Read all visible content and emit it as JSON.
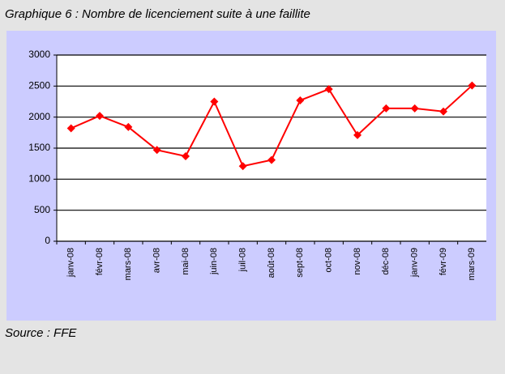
{
  "chart_data": {
    "type": "line",
    "title": "Graphique 6 : Nombre de licenciement suite à une faillite",
    "source": "Source : FFE",
    "categories": [
      "janv-08",
      "févr-08",
      "mars-08",
      "avr-08",
      "mai-08",
      "juin-08",
      "juil-08",
      "août-08",
      "sept-08",
      "oct-08",
      "nov-08",
      "déc-08",
      "janv-09",
      "févr-09",
      "mars-09"
    ],
    "values": [
      1820,
      2020,
      1840,
      1470,
      1370,
      2250,
      1210,
      1310,
      2270,
      2450,
      1710,
      2140,
      2140,
      2090,
      2510
    ],
    "color": "#ff0000",
    "ylim": [
      0,
      3000
    ],
    "yticks": [
      0,
      500,
      1000,
      1500,
      2000,
      2500,
      3000
    ],
    "grid": true
  }
}
